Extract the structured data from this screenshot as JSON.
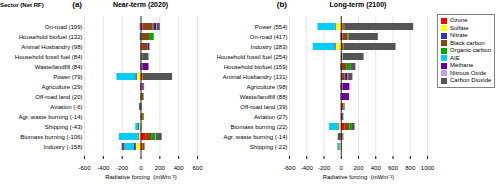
{
  "chart_data": [
    {
      "type": "bar",
      "orientation": "horizontal",
      "stacked": true,
      "grid": true,
      "legend": false,
      "title": "Near-term (2020)",
      "x_label": "Radiative forcing  (mWm⁻²)",
      "annotations": [
        "(a)",
        "Sector (Net RF)"
      ],
      "categories": [
        "On-road (199)",
        "Household biofuel (132)",
        "Animal Husbandry (98)",
        "Household fossil fuel (84)",
        "Waste/landfill (84)",
        "Power (79)",
        "Agriculture (29)",
        "Off-road land (20)",
        "Aviation (-6)",
        "Agr. waste burning (-14)",
        "Shipping (-43)",
        "Biomass burning (-106)",
        "Industry (-158)"
      ],
      "series": [
        {
          "name": "Ozone",
          "color": "#ff0000",
          "values": [
            20,
            10,
            10,
            5,
            10,
            20,
            10,
            10,
            5,
            10,
            5,
            50,
            20
          ]
        },
        {
          "name": "Sulfate",
          "color": "#ffff00",
          "values": [
            0,
            0,
            0,
            0,
            0,
            -40,
            0,
            0,
            0,
            0,
            -15,
            -20,
            -50
          ]
        },
        {
          "name": "Nitrate",
          "color": "#3333bb",
          "values": [
            -5,
            -5,
            0,
            0,
            -5,
            -15,
            -5,
            0,
            -5,
            0,
            -10,
            -10,
            -20
          ]
        },
        {
          "name": "Black carbon",
          "color": "#8b4513",
          "values": [
            110,
            80,
            60,
            10,
            5,
            5,
            5,
            20,
            5,
            15,
            5,
            70,
            20
          ]
        },
        {
          "name": "Organic carbon",
          "color": "#00aa00",
          "values": [
            10,
            50,
            5,
            5,
            5,
            0,
            5,
            5,
            0,
            10,
            0,
            40,
            5
          ]
        },
        {
          "name": "AIE",
          "color": "#00ccff",
          "values": [
            -5,
            -5,
            0,
            0,
            0,
            -200,
            0,
            0,
            0,
            0,
            -30,
            -200,
            -100
          ]
        },
        {
          "name": "Methane",
          "color": "#660099",
          "values": [
            30,
            0,
            20,
            0,
            60,
            0,
            15,
            0,
            0,
            0,
            0,
            0,
            0
          ]
        },
        {
          "name": "Nitrous Oxide",
          "color": "#cc99ff",
          "values": [
            5,
            0,
            5,
            0,
            5,
            0,
            5,
            0,
            0,
            0,
            0,
            5,
            0
          ]
        },
        {
          "name": "Carbon Dioxide",
          "color": "#555555",
          "values": [
            30,
            0,
            0,
            65,
            5,
            310,
            0,
            0,
            -10,
            0,
            0,
            60,
            -30
          ]
        }
      ],
      "xlim": [
        -600,
        600
      ],
      "xticks": [
        -600,
        -400,
        -200,
        0,
        200,
        400,
        600
      ]
    },
    {
      "type": "bar",
      "orientation": "horizontal",
      "stacked": true,
      "grid": true,
      "legend": "right",
      "title": "Long-term (2100)",
      "x_label": "Radiative forcing  (mWm⁻²)",
      "annotations": [
        "(b)"
      ],
      "categories": [
        "Power (554)",
        "On-road (417)",
        "Industry (283)",
        "Household fossil fuel (254)",
        "Household biofuel (159)",
        "Animal Husbandry (131)",
        "Agriculture (98)",
        "Waste/landfill (88)",
        "Off-road land (39)",
        "Aviation (27)",
        "Biomass burning (22)",
        "Agr. waste burning (-14)",
        "Shipping (-22)"
      ],
      "series": [
        {
          "name": "Ozone",
          "color": "#ff0000",
          "values": [
            20,
            20,
            15,
            5,
            10,
            5,
            10,
            5,
            10,
            10,
            40,
            10,
            5
          ]
        },
        {
          "name": "Sulfate",
          "color": "#ffff00",
          "values": [
            -60,
            0,
            -60,
            0,
            0,
            0,
            0,
            0,
            0,
            0,
            -25,
            0,
            -15
          ]
        },
        {
          "name": "Nitrate",
          "color": "#3333bb",
          "values": [
            -10,
            -5,
            -15,
            0,
            -5,
            0,
            -5,
            -5,
            0,
            0,
            -10,
            0,
            -5
          ]
        },
        {
          "name": "Black carbon",
          "color": "#8b4513",
          "values": [
            15,
            60,
            15,
            10,
            60,
            40,
            5,
            5,
            20,
            5,
            60,
            10,
            5
          ]
        },
        {
          "name": "Organic carbon",
          "color": "#00aa00",
          "values": [
            5,
            10,
            5,
            5,
            40,
            5,
            5,
            5,
            5,
            0,
            30,
            10,
            0
          ]
        },
        {
          "name": "AIE",
          "color": "#00ccff",
          "values": [
            -200,
            0,
            -250,
            0,
            0,
            0,
            0,
            0,
            0,
            0,
            -100,
            0,
            -15
          ]
        },
        {
          "name": "Methane",
          "color": "#660099",
          "values": [
            0,
            0,
            0,
            0,
            0,
            30,
            80,
            80,
            0,
            0,
            0,
            0,
            0
          ]
        },
        {
          "name": "Nitrous Oxide",
          "color": "#cc99ff",
          "values": [
            0,
            0,
            0,
            5,
            0,
            5,
            10,
            0,
            0,
            0,
            0,
            5,
            0
          ]
        },
        {
          "name": "Carbon Dioxide",
          "color": "#555555",
          "values": [
            800,
            340,
            600,
            240,
            60,
            50,
            0,
            0,
            10,
            15,
            30,
            -35,
            -5
          ]
        }
      ],
      "xlim": [
        -600,
        1000
      ],
      "xticks": [
        -600,
        -400,
        -200,
        0,
        200,
        400,
        600,
        800,
        1000
      ]
    }
  ]
}
